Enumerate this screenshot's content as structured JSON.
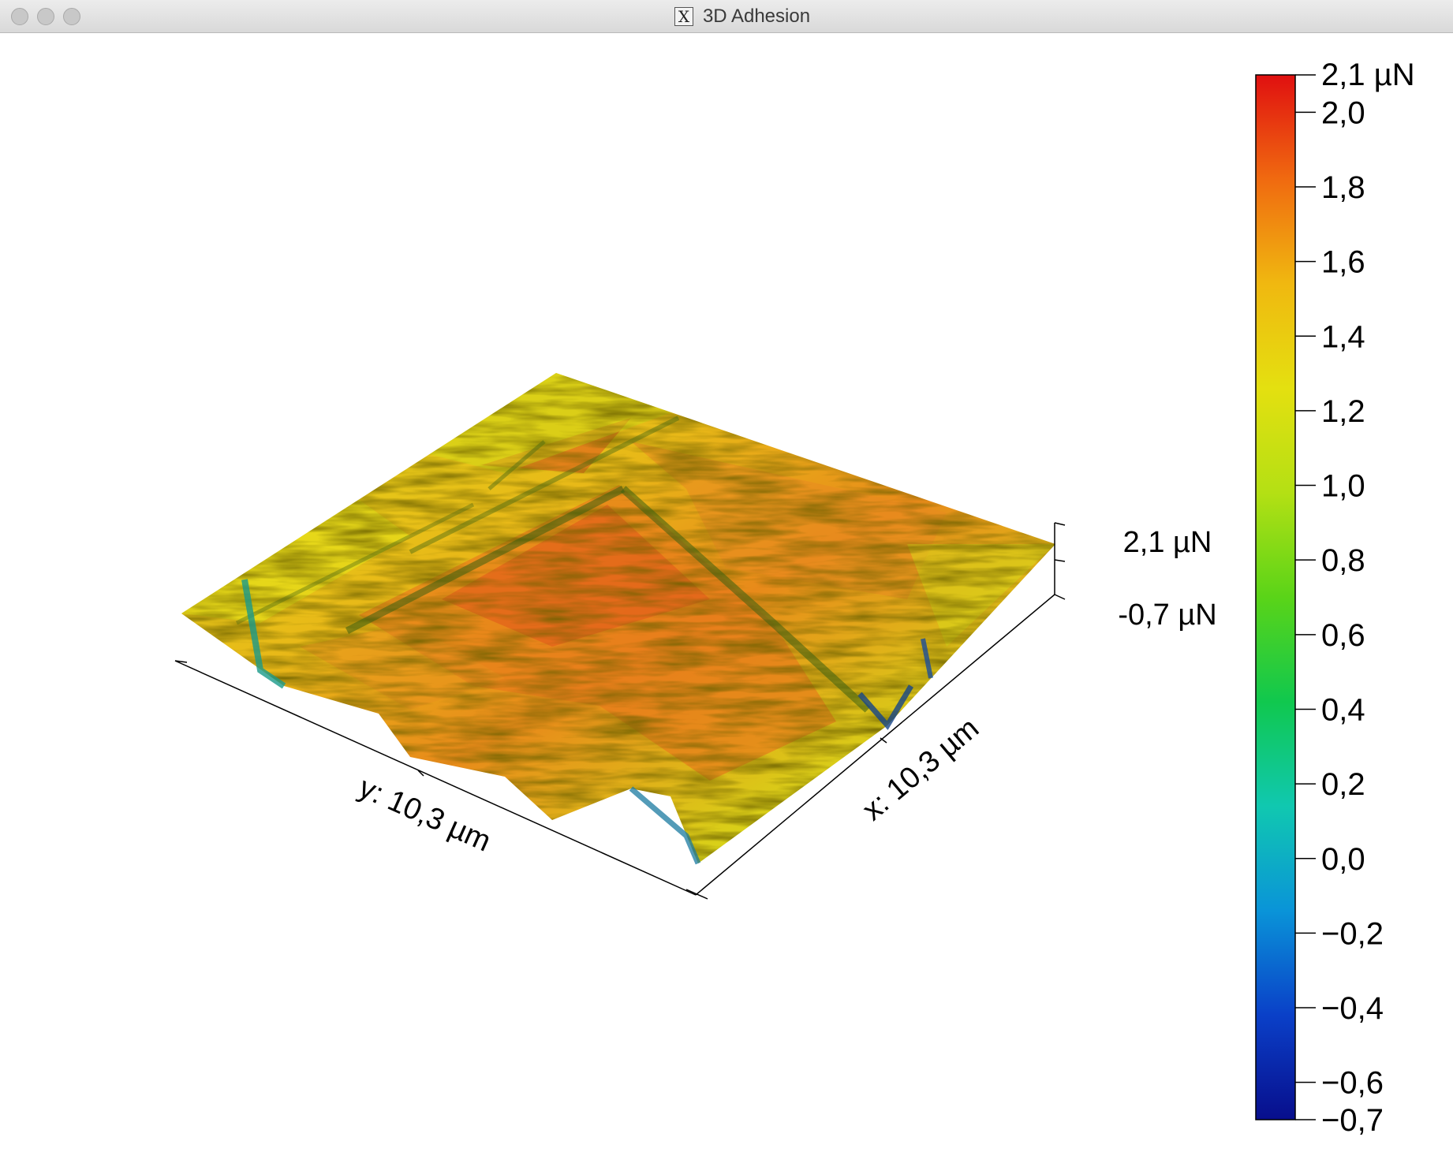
{
  "window": {
    "title": "3D Adhesion",
    "title_icon": "x11-icon",
    "buttons": [
      "close",
      "minimize",
      "zoom"
    ]
  },
  "plot": {
    "y_axis_label": "y: 10,3 µm",
    "x_axis_label": "x: 10,3 µm",
    "z_max_label": "2,1 µN",
    "z_min_label": "-0,7 µN"
  },
  "colorbar": {
    "top_label": "2,1 µN",
    "ticks": [
      "2,0",
      "1,8",
      "1,6",
      "1,4",
      "1,2",
      "1,0",
      "0,8",
      "0,6",
      "0,4",
      "0,2",
      "0,0",
      "−0,2",
      "−0,4",
      "−0,6",
      "−0,7"
    ],
    "colors": [
      "#e01010",
      "#f06a10",
      "#f0b810",
      "#e4e010",
      "#b4e014",
      "#5ad418",
      "#10c84e",
      "#10c8b0",
      "#0a94d8",
      "#0a40c8",
      "#080e8c"
    ]
  }
}
